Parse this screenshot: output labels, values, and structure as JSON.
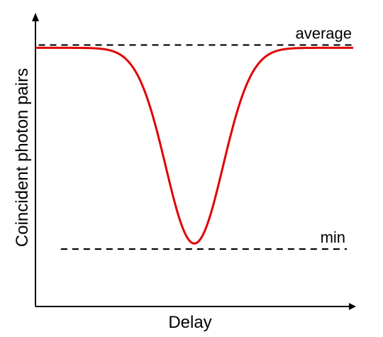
{
  "chart_data": {
    "type": "line",
    "xlabel": "Delay",
    "ylabel": "Coincident photon pairs",
    "xlim": [
      0,
      100
    ],
    "ylim": [
      0,
      100
    ],
    "grid": false,
    "series": [
      {
        "color": "#e00000",
        "model": "gaussian-dip",
        "baseline": 90,
        "minimum": 20,
        "center": 50,
        "width": 9,
        "x": [
          0,
          20,
          25,
          30,
          35,
          40,
          45,
          50,
          55,
          60,
          65,
          70,
          75,
          80,
          100
        ],
        "values": [
          90,
          90,
          89.8,
          88.3,
          81.4,
          63.6,
          41.6,
          20,
          41.6,
          63.6,
          81.4,
          88.3,
          89.8,
          90,
          90
        ]
      }
    ],
    "reference_lines": [
      {
        "label": "average",
        "y": 91,
        "x_start": 1,
        "x_end": 100,
        "style": "dashed",
        "color": "#000000"
      },
      {
        "label": "min",
        "y": 18,
        "x_start": 8,
        "x_end": 98,
        "style": "dashed",
        "color": "#000000"
      }
    ],
    "axis_color": "#000000"
  }
}
